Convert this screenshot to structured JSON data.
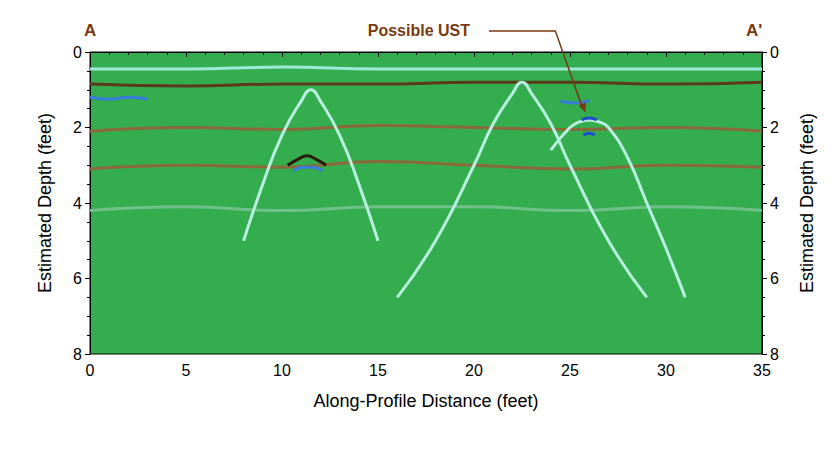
{
  "chart_data": {
    "type": "line",
    "profile_start": "A",
    "profile_end": "A'",
    "xlabel": "Along-Profile Distance (feet)",
    "ylabel": "Estimated Depth (feet)",
    "y2label": "Estimated Depth (feet)",
    "xlim": [
      0,
      35
    ],
    "xticks": [
      0,
      5,
      10,
      15,
      20,
      25,
      30,
      35
    ],
    "ylim": [
      0,
      8
    ],
    "yticks": [
      0,
      2,
      4,
      6,
      8
    ],
    "y2lim": [
      0,
      8
    ],
    "y2ticks": [
      0,
      2,
      4,
      6,
      8
    ],
    "grid": false,
    "annotations": [
      {
        "text": "Possible UST",
        "x": 25.8,
        "y": 1.6
      }
    ],
    "series": [
      {
        "color": "#9ee8d8",
        "x": [
          0,
          5,
          10,
          15,
          20,
          25,
          30,
          35
        ],
        "values": [
          0.45,
          0.45,
          0.4,
          0.45,
          0.45,
          0.45,
          0.45,
          0.45
        ]
      },
      {
        "color": "#5a3a1a",
        "x": [
          0,
          5,
          10,
          15,
          20,
          25,
          30,
          35
        ],
        "values": [
          0.85,
          0.9,
          0.85,
          0.85,
          0.8,
          0.8,
          0.85,
          0.8
        ]
      },
      {
        "color": "#3a7ad8",
        "x": [
          0,
          1,
          2,
          3
        ],
        "values": [
          1.2,
          1.25,
          1.2,
          1.25
        ]
      },
      {
        "color": "#3a7ad8",
        "x": [
          24.5,
          25.2,
          26
        ],
        "values": [
          1.3,
          1.35,
          1.3
        ]
      },
      {
        "color": "#8a6a3a",
        "x": [
          0,
          5,
          10,
          15,
          20,
          25,
          30,
          35
        ],
        "values": [
          2.1,
          2.0,
          2.05,
          1.95,
          2.0,
          2.05,
          2.0,
          2.1
        ]
      },
      {
        "color": "#8a6a3a",
        "x": [
          0,
          5,
          10,
          15,
          20,
          25,
          30,
          35
        ],
        "values": [
          3.1,
          3.0,
          3.05,
          2.9,
          3.0,
          3.1,
          3.0,
          3.05
        ]
      },
      {
        "color": "#6fc08a",
        "x": [
          0,
          5,
          10,
          15,
          20,
          25,
          30,
          35
        ],
        "values": [
          4.2,
          4.1,
          4.2,
          4.1,
          4.1,
          4.2,
          4.1,
          4.2
        ]
      },
      {
        "color": "#b8f0e0",
        "x": [
          8,
          9,
          10,
          11,
          11.5,
          12,
          13,
          14,
          15
        ],
        "values": [
          5,
          3.5,
          2.2,
          1.3,
          1.0,
          1.3,
          2.2,
          3.5,
          5
        ]
      },
      {
        "color": "#2a1a0a",
        "x": [
          10.3,
          10.8,
          11.3,
          11.8,
          12.3
        ],
        "values": [
          3.0,
          2.85,
          2.75,
          2.85,
          3.0
        ]
      },
      {
        "color": "#3a7ad8",
        "x": [
          10.6,
          11.1,
          11.6,
          12.1
        ],
        "values": [
          3.15,
          3.05,
          3.05,
          3.15
        ]
      },
      {
        "color": "#b8f0e0",
        "x": [
          16,
          18,
          20,
          21,
          22,
          22.5,
          23,
          24,
          25,
          27,
          29
        ],
        "values": [
          6.5,
          5,
          3,
          1.9,
          1.1,
          0.8,
          1.1,
          1.9,
          3,
          5,
          6.5
        ]
      },
      {
        "color": "#b8f0e0",
        "x": [
          24,
          25,
          25.5,
          26,
          26.5,
          27,
          28,
          29,
          30,
          31
        ],
        "values": [
          2.6,
          2.0,
          1.85,
          1.8,
          1.85,
          2.0,
          2.8,
          4,
          5.2,
          6.5
        ]
      },
      {
        "color": "#1f4fc8",
        "x": [
          25.6,
          26,
          26.4
        ],
        "values": [
          1.8,
          1.75,
          1.8
        ]
      },
      {
        "color": "#1f4fc8",
        "x": [
          25.7,
          26,
          26.3
        ],
        "values": [
          2.2,
          2.15,
          2.2
        ]
      }
    ]
  }
}
